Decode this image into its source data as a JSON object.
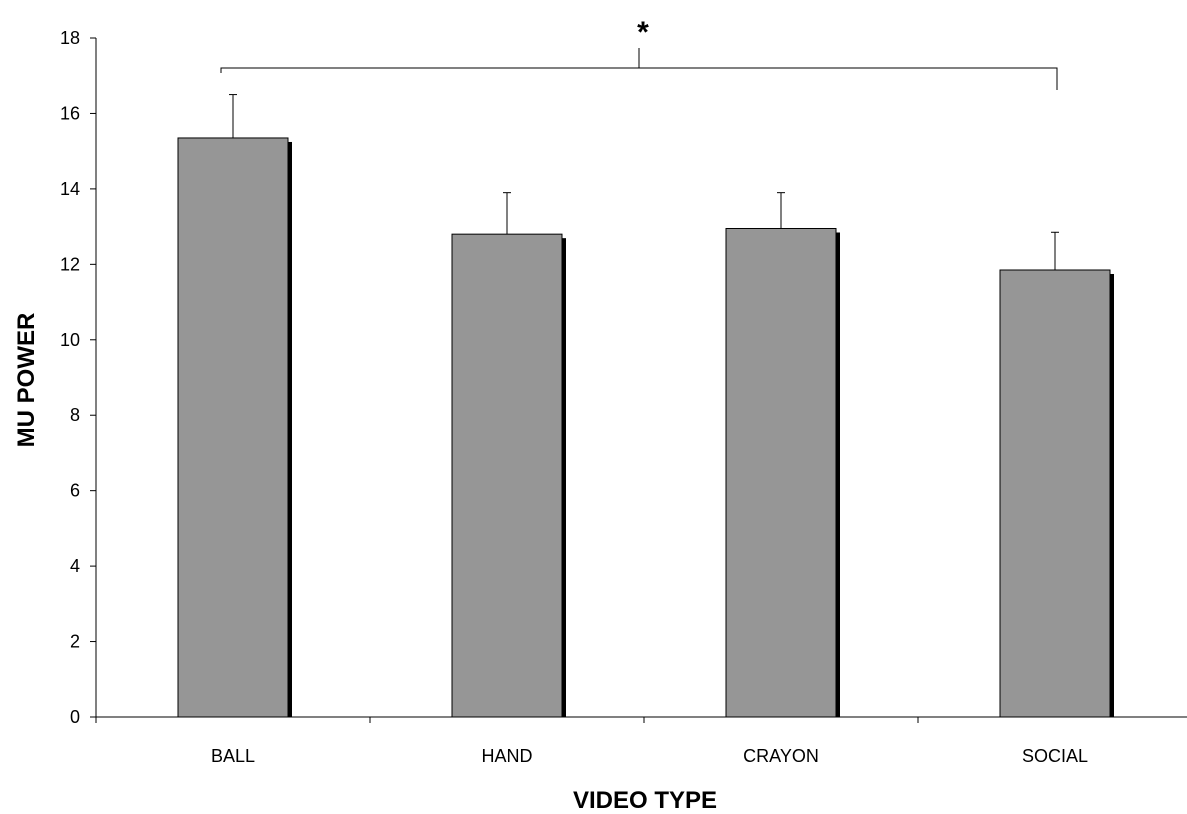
{
  "chart_data": {
    "type": "bar",
    "categories": [
      "BALL",
      "HAND",
      "CRAYON",
      "SOCIAL"
    ],
    "values": [
      15.35,
      12.8,
      12.95,
      11.85
    ],
    "error": [
      1.15,
      1.1,
      0.95,
      1.0
    ],
    "xlabel": "VIDEO TYPE",
    "ylabel": "MU POWER",
    "ylim": [
      0,
      18
    ],
    "yticks": [
      "0",
      "2",
      "4",
      "6",
      "8",
      "10",
      "12",
      "14",
      "16",
      "18"
    ],
    "grid": false,
    "legend": "none",
    "bar_color": "#969696",
    "bar_shadow_color": "#000000",
    "significance": {
      "label": "*",
      "from": "BALL",
      "to": "SOCIAL"
    }
  }
}
